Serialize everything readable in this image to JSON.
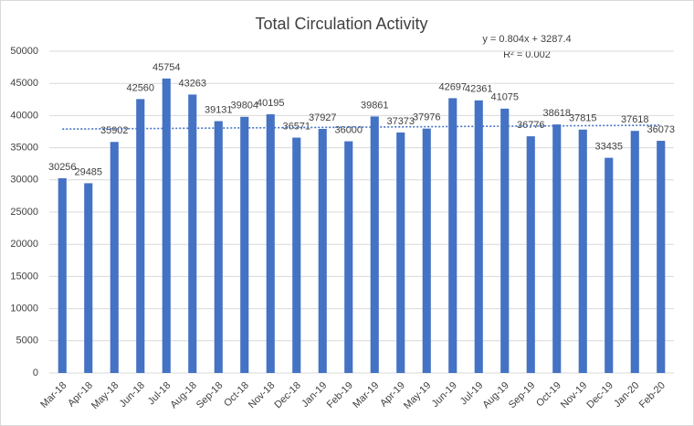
{
  "chart_data": {
    "type": "bar",
    "title": "Total Circulation Activity",
    "categories": [
      "Mar-18",
      "Apr-18",
      "May-18",
      "Jun-18",
      "Jul-18",
      "Aug-18",
      "Sep-18",
      "Oct-18",
      "Nov-18",
      "Dec-18",
      "Jan-19",
      "Feb-19",
      "Mar-19",
      "Apr-19",
      "May-19",
      "Jun-19",
      "Jul-19",
      "Aug-19",
      "Sep-19",
      "Oct-19",
      "Nov-19",
      "Dec-19",
      "Jan-20",
      "Feb-20"
    ],
    "values": [
      30256,
      29485,
      35902,
      42560,
      45754,
      43263,
      39131,
      39804,
      40195,
      36571,
      37927,
      36000,
      39861,
      37373,
      37976,
      42697,
      42361,
      41075,
      36776,
      38618,
      37815,
      33435,
      37618,
      36073
    ],
    "color": "#4472c4",
    "ylim": [
      0,
      50000
    ],
    "yticks": [
      0,
      5000,
      10000,
      15000,
      20000,
      25000,
      30000,
      35000,
      40000,
      45000,
      50000
    ],
    "grid": true,
    "trendline": {
      "start": 37900,
      "end": 38500,
      "color": "#4472c4"
    },
    "annotations": [
      "y = 0.804x + 3287.4",
      "R² = 0.002"
    ]
  }
}
